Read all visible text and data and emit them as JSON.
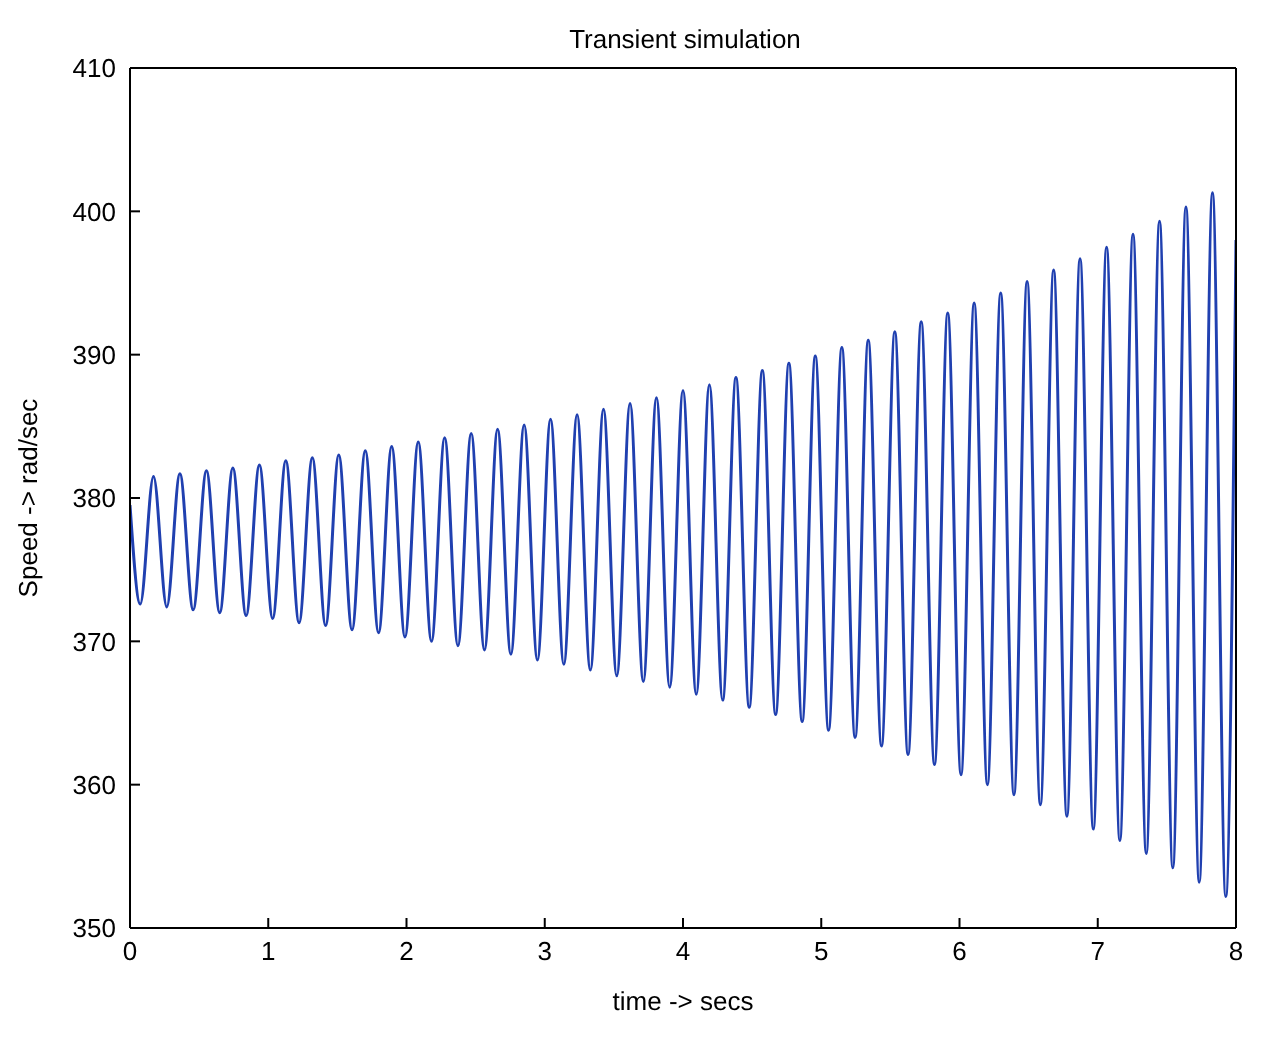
{
  "chart_data": {
    "type": "line",
    "title": "Transient simulation",
    "xlabel": "time -> secs",
    "ylabel": "Speed -> rad/sec",
    "x": [
      0,
      0.074,
      0.17,
      0.266,
      0.361,
      0.457,
      0.553,
      0.649,
      0.744,
      0.84,
      0.936,
      1.032,
      1.127,
      1.223,
      1.319,
      1.415,
      1.51,
      1.606,
      1.702,
      1.798,
      1.893,
      1.989,
      2.085,
      2.181,
      2.276,
      2.372,
      2.468,
      2.564,
      2.659,
      2.755,
      2.851,
      2.947,
      3.042,
      3.138,
      3.234,
      3.33,
      3.425,
      3.521,
      3.617,
      3.713,
      3.808,
      3.904,
      4.0,
      4.096,
      4.191,
      4.287,
      4.383,
      4.479,
      4.574,
      4.67,
      4.766,
      4.862,
      4.957,
      5.053,
      5.149,
      5.245,
      5.34,
      5.436,
      5.532,
      5.628,
      5.723,
      5.819,
      5.915,
      6.011,
      6.106,
      6.202,
      6.298,
      6.394,
      6.489,
      6.585,
      6.681,
      6.777,
      6.872,
      6.968,
      7.064,
      7.16,
      7.255,
      7.351,
      7.447,
      7.543,
      7.638,
      7.734,
      7.83,
      7.926,
      8
    ],
    "series": [
      {
        "color": "#2040b0",
        "values": [
          379.5,
          372.6,
          381.5,
          372.4,
          381.7,
          372.2,
          381.9,
          372.0,
          382.1,
          371.8,
          382.3,
          371.6,
          382.6,
          371.3,
          382.8,
          371.1,
          383.0,
          370.8,
          383.3,
          370.6,
          383.6,
          370.3,
          383.9,
          370.0,
          384.2,
          369.7,
          384.5,
          369.4,
          384.8,
          369.1,
          385.1,
          368.7,
          385.5,
          368.4,
          385.8,
          368.0,
          386.2,
          367.6,
          386.6,
          367.2,
          387.0,
          366.8,
          387.5,
          366.3,
          387.9,
          365.9,
          388.4,
          365.4,
          388.9,
          364.9,
          389.4,
          364.4,
          389.9,
          363.8,
          390.5,
          363.3,
          391.0,
          362.7,
          391.6,
          362.1,
          392.3,
          361.4,
          392.9,
          360.7,
          393.6,
          360.0,
          394.3,
          359.3,
          395.1,
          358.6,
          395.9,
          357.8,
          396.7,
          356.9,
          397.5,
          356.1,
          398.4,
          355.2,
          399.3,
          354.2,
          400.3,
          353.2,
          401.3,
          352.2,
          398
        ]
      }
    ],
    "xlim": [
      0,
      8
    ],
    "xticks": [
      0,
      1,
      2,
      3,
      4,
      5,
      6,
      7,
      8
    ],
    "ylim": [
      350,
      410
    ],
    "yticks": [
      350,
      360,
      370,
      380,
      390,
      400,
      410
    ],
    "grid": false,
    "legend": false,
    "marker": "none",
    "line_style": "solid"
  }
}
